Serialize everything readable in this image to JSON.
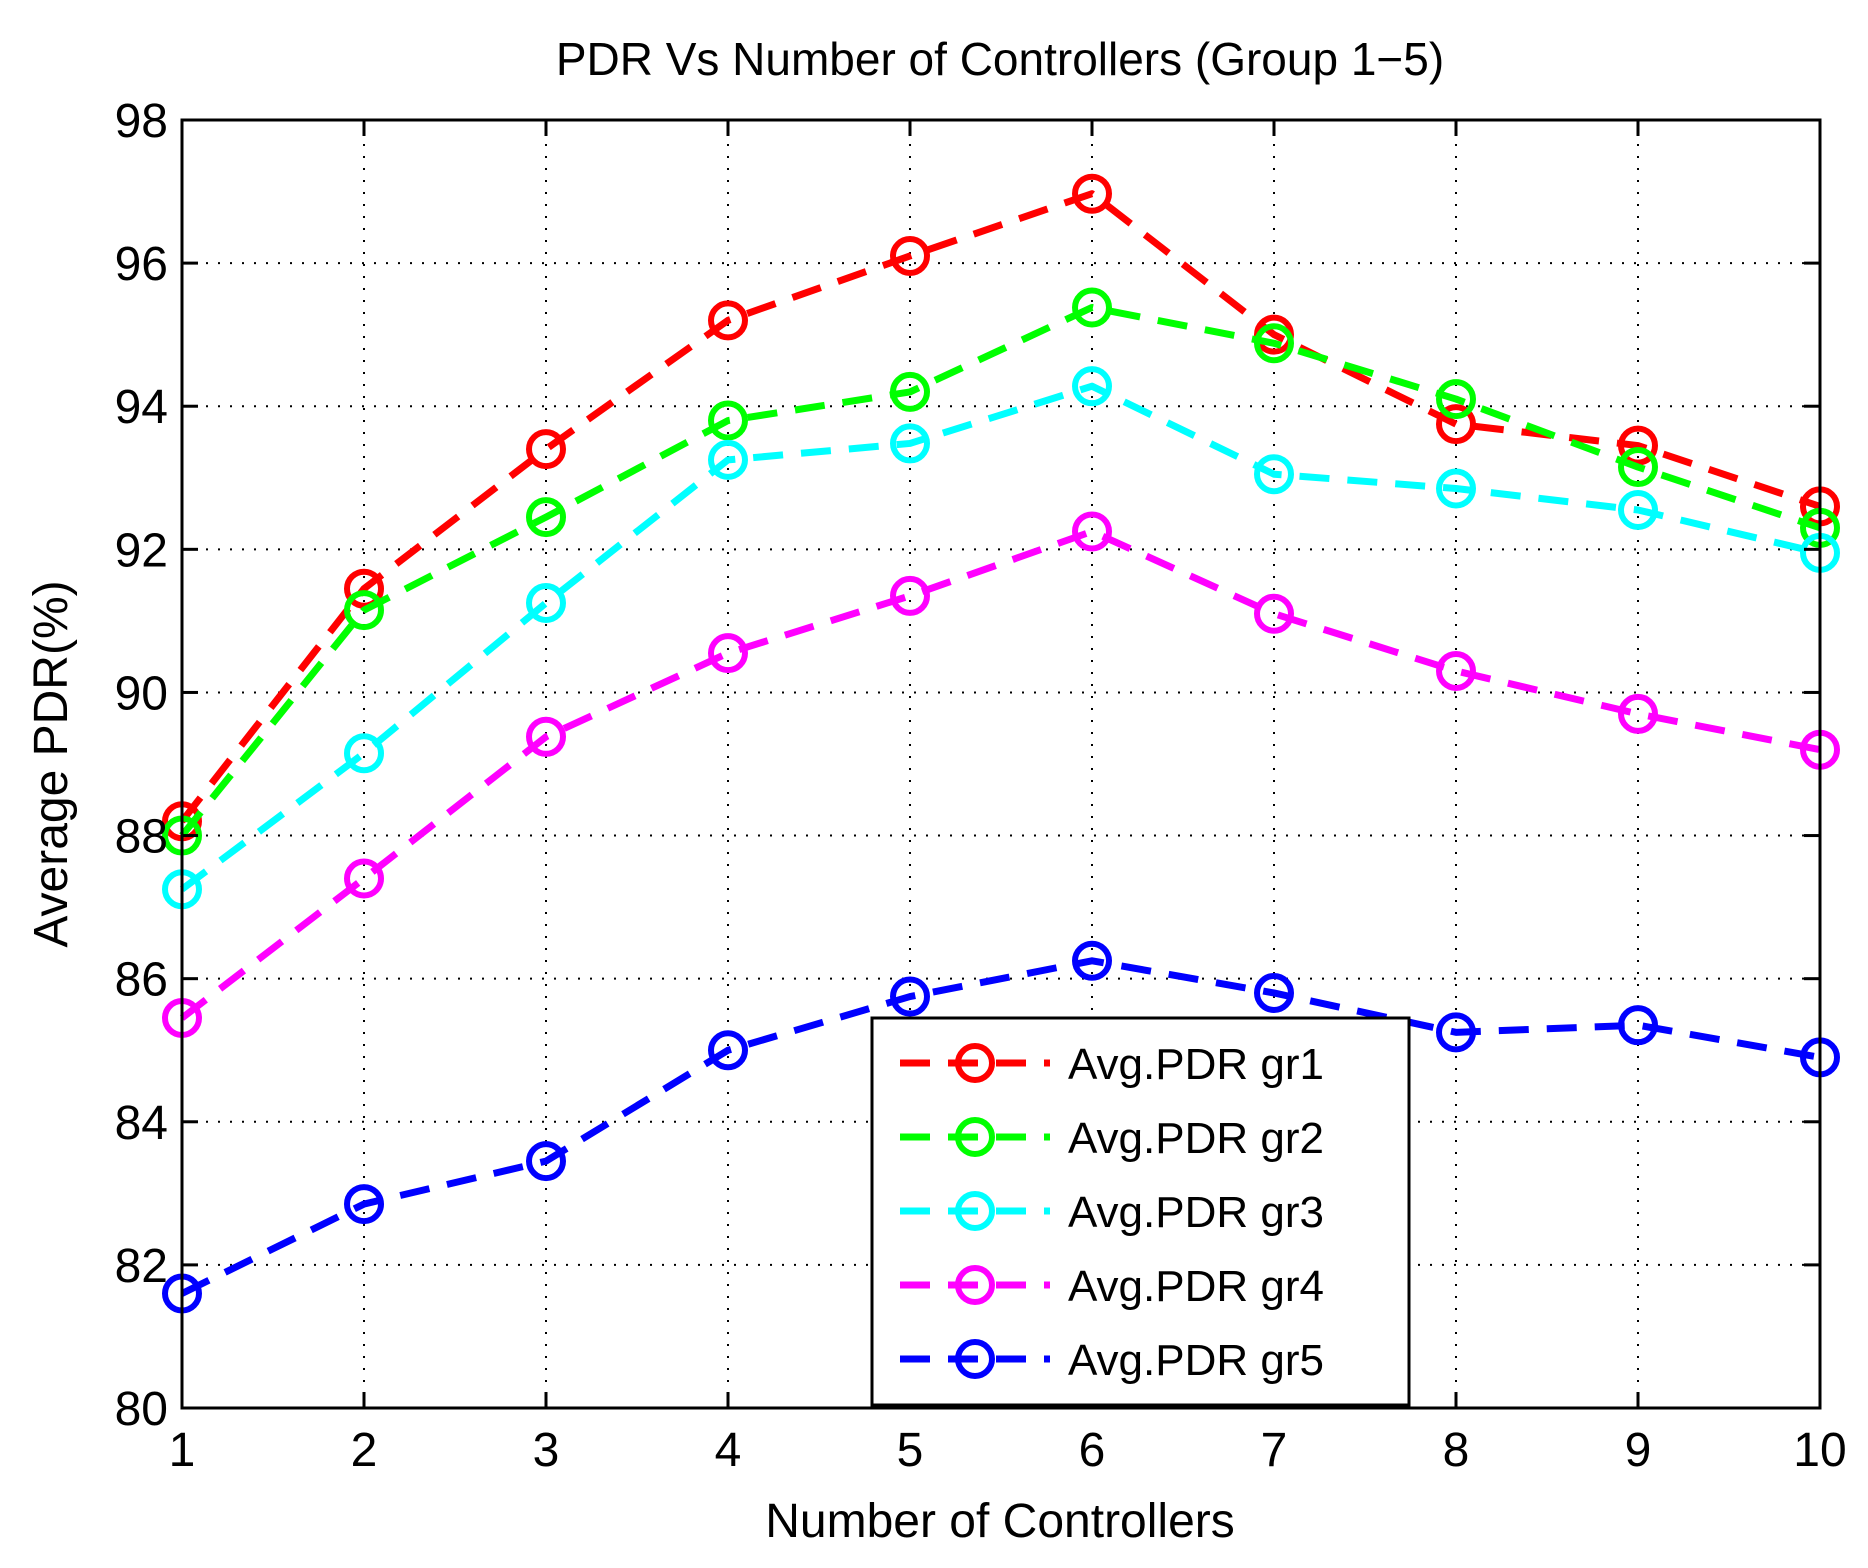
{
  "chart_data": {
    "type": "line",
    "title": "PDR Vs Number of Controllers (Group 1−5)",
    "xlabel": "Number of Controllers",
    "ylabel": "Average PDR(%)",
    "x": [
      1,
      2,
      3,
      4,
      5,
      6,
      7,
      8,
      9,
      10
    ],
    "xlim": [
      1,
      10
    ],
    "ylim": [
      80,
      98
    ],
    "xticks": [
      "1",
      "2",
      "3",
      "4",
      "5",
      "6",
      "7",
      "8",
      "9",
      "10"
    ],
    "yticks": [
      "80",
      "82",
      "84",
      "86",
      "88",
      "90",
      "92",
      "94",
      "96",
      "98"
    ],
    "grid": true,
    "legend_position": "bottom-right",
    "series": [
      {
        "name": "Avg.PDR gr1",
        "color": "#ff0000",
        "values": [
          88.2,
          91.45,
          93.4,
          95.2,
          96.1,
          96.97,
          95.0,
          93.75,
          93.45,
          92.6
        ]
      },
      {
        "name": "Avg.PDR gr2",
        "color": "#00ff00",
        "values": [
          88.0,
          91.15,
          92.45,
          93.8,
          94.2,
          95.38,
          94.88,
          94.1,
          93.15,
          92.3
        ]
      },
      {
        "name": "Avg.PDR gr3",
        "color": "#00ffff",
        "values": [
          87.25,
          89.15,
          91.25,
          93.25,
          93.48,
          94.28,
          93.05,
          92.85,
          92.55,
          91.95
        ]
      },
      {
        "name": "Avg.PDR gr4",
        "color": "#ff00ff",
        "values": [
          85.45,
          87.4,
          89.38,
          90.55,
          91.35,
          92.25,
          91.1,
          90.3,
          89.7,
          89.2
        ]
      },
      {
        "name": "Avg.PDR gr5",
        "color": "#0000ff",
        "values": [
          81.6,
          82.85,
          83.45,
          85.0,
          85.75,
          86.25,
          85.8,
          85.25,
          85.35,
          84.9
        ]
      }
    ]
  }
}
